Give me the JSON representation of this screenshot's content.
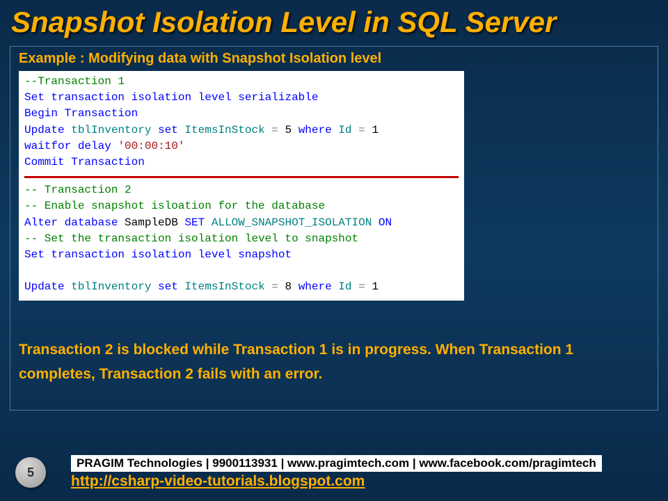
{
  "title": "Snapshot Isolation Level in SQL Server",
  "example_label": "Example : Modifying data with Snapshot Isolation level",
  "code1": {
    "l1": "--Transaction 1",
    "l2a": "Set",
    "l2b": " transaction isolation level serializable",
    "l3a": "Begin",
    "l3b": " Transaction",
    "l4a": "Update",
    "l4b": " tblInventory ",
    "l4c": "set",
    "l4d": " ItemsInStock ",
    "l4e": "=",
    "l4f": " 5 ",
    "l4g": "where",
    "l4h": " Id ",
    "l4i": "=",
    "l4j": " 1",
    "l5a": "waitfor",
    "l5b": " delay ",
    "l5c": "'00:00:10'",
    "l6a": "Commit",
    "l6b": " Transaction"
  },
  "code2": {
    "l1": "-- Transaction 2",
    "l2": "-- Enable snapshot isloation for the database",
    "l3a": "Alter",
    "l3b": " database",
    "l3c": " SampleDB ",
    "l3d": "SET",
    "l3e": " ALLOW_SNAPSHOT_ISOLATION ",
    "l3f": "ON",
    "l4": "-- Set the transaction isolation level to snapshot",
    "l5a": "Set",
    "l5b": " transaction isolation level snapshot",
    "l7a": "Update",
    "l7b": " tblInventory ",
    "l7c": "set",
    "l7d": " ItemsInStock ",
    "l7e": "=",
    "l7f": " 8 ",
    "l7g": "where",
    "l7h": " Id ",
    "l7i": "=",
    "l7j": " 1"
  },
  "explain": "Transaction 2 is blocked while Transaction 1 is in progress. When Transaction 1 completes, Transaction 2 fails with an error.",
  "page_number": "5",
  "footer1": "PRAGIM Technologies | 9900113931 | www.pragimtech.com | www.facebook.com/pragimtech",
  "footer2": "http://csharp-video-tutorials.blogspot.com",
  "colors": {
    "accent": "#ffb000",
    "bg_top": "#0a2a4a",
    "divider": "#c00000"
  }
}
